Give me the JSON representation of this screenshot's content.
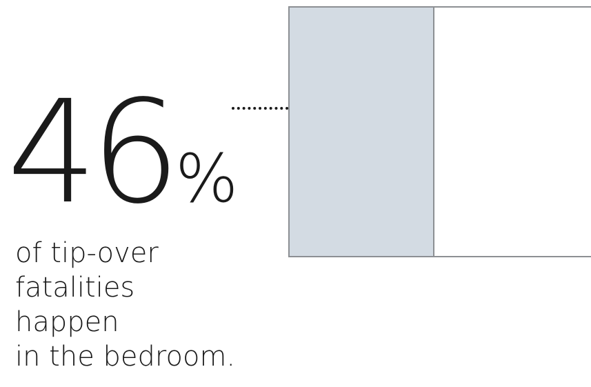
{
  "stat": {
    "number": "46",
    "unit": "%",
    "value_fraction": 0.46
  },
  "caption": {
    "lines": [
      "of tip-over",
      "fatalities",
      "happen",
      "in the bedroom."
    ]
  },
  "colors": {
    "text": "#1a1a1a",
    "fill": "#d3dbe3",
    "frame": "#8c8f93",
    "background": "#ffffff"
  }
}
